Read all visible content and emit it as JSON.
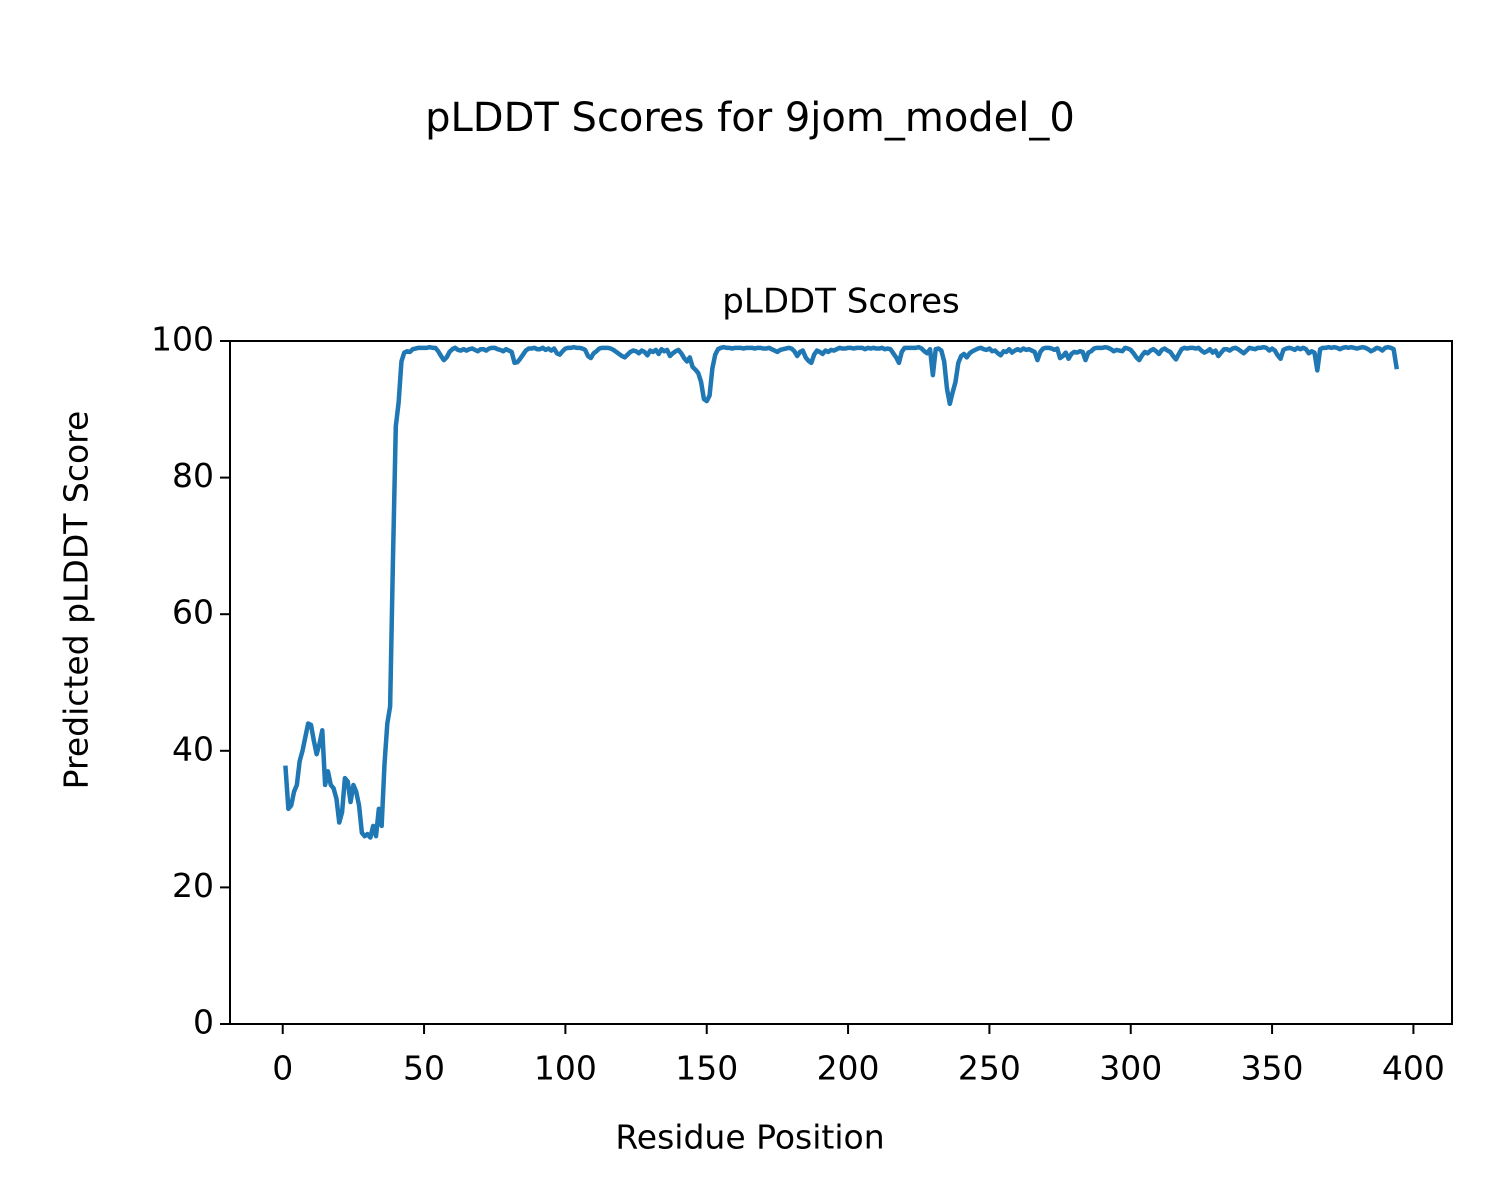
{
  "chart_data": {
    "type": "line",
    "title": "pLDDT Scores for 9jom_model_0",
    "subtitle": "pLDDT Scores",
    "xlabel": "Residue Position",
    "ylabel": "Predicted pLDDT Score",
    "xlim": [
      -18.65,
      413.65
    ],
    "ylim": [
      0,
      100
    ],
    "xticks": [
      0,
      50,
      100,
      150,
      200,
      250,
      300,
      350,
      400
    ],
    "yticks": [
      0,
      20,
      40,
      60,
      80,
      100
    ],
    "x": [
      1,
      2,
      3,
      4,
      5,
      6,
      7,
      8,
      9,
      10,
      11,
      12,
      13,
      14,
      15,
      16,
      17,
      18,
      19,
      20,
      21,
      22,
      23,
      24,
      25,
      26,
      27,
      28,
      29,
      30,
      31,
      32,
      33,
      34,
      35,
      36,
      37,
      38,
      39,
      40,
      41,
      42,
      43,
      44,
      45,
      46,
      47,
      48,
      49,
      50,
      51,
      52,
      53,
      54,
      55,
      56,
      57,
      58,
      59,
      60,
      61,
      62,
      63,
      64,
      65,
      66,
      67,
      68,
      69,
      70,
      71,
      72,
      73,
      74,
      75,
      76,
      77,
      78,
      79,
      80,
      81,
      82,
      83,
      84,
      85,
      86,
      87,
      88,
      89,
      90,
      91,
      92,
      93,
      94,
      95,
      96,
      97,
      98,
      99,
      100,
      101,
      102,
      103,
      104,
      105,
      106,
      107,
      108,
      109,
      110,
      111,
      112,
      113,
      114,
      115,
      116,
      117,
      118,
      119,
      120,
      121,
      122,
      123,
      124,
      125,
      126,
      127,
      128,
      129,
      130,
      131,
      132,
      133,
      134,
      135,
      136,
      137,
      138,
      139,
      140,
      141,
      142,
      143,
      144,
      145,
      146,
      147,
      148,
      149,
      150,
      151,
      152,
      153,
      154,
      155,
      156,
      157,
      158,
      159,
      160,
      161,
      162,
      163,
      164,
      165,
      166,
      167,
      168,
      169,
      170,
      171,
      172,
      173,
      174,
      175,
      176,
      177,
      178,
      179,
      180,
      181,
      182,
      183,
      184,
      185,
      186,
      187,
      188,
      189,
      190,
      191,
      192,
      193,
      194,
      195,
      196,
      197,
      198,
      199,
      200,
      201,
      202,
      203,
      204,
      205,
      206,
      207,
      208,
      209,
      210,
      211,
      212,
      213,
      214,
      215,
      216,
      217,
      218,
      219,
      220,
      221,
      222,
      223,
      224,
      225,
      226,
      227,
      228,
      229,
      230,
      231,
      232,
      233,
      234,
      235,
      236,
      237,
      238,
      239,
      240,
      241,
      242,
      243,
      244,
      245,
      246,
      247,
      248,
      249,
      250,
      251,
      252,
      253,
      254,
      255,
      256,
      257,
      258,
      259,
      260,
      261,
      262,
      263,
      264,
      265,
      266,
      267,
      268,
      269,
      270,
      271,
      272,
      273,
      274,
      275,
      276,
      277,
      278,
      279,
      280,
      281,
      282,
      283,
      284,
      285,
      286,
      287,
      288,
      289,
      290,
      291,
      292,
      293,
      294,
      295,
      296,
      297,
      298,
      299,
      300,
      301,
      302,
      303,
      304,
      305,
      306,
      307,
      308,
      309,
      310,
      311,
      312,
      313,
      314,
      315,
      316,
      317,
      318,
      319,
      320,
      321,
      322,
      323,
      324,
      325,
      326,
      327,
      328,
      329,
      330,
      331,
      332,
      333,
      334,
      335,
      336,
      337,
      338,
      339,
      340,
      341,
      342,
      343,
      344,
      345,
      346,
      347,
      348,
      349,
      350,
      351,
      352,
      353,
      354,
      355,
      356,
      357,
      358,
      359,
      360,
      361,
      362,
      363,
      364,
      365,
      366,
      367,
      368,
      369,
      370,
      371,
      372,
      373,
      374,
      375,
      376,
      377,
      378,
      379,
      380,
      381,
      382,
      383,
      384,
      385,
      386,
      387,
      388,
      389,
      390,
      391,
      392,
      393,
      394
    ],
    "series": [
      {
        "color": "#1f77b4",
        "values": [
          37.5,
          31.5,
          32,
          34,
          35,
          38.5,
          40,
          42,
          44,
          43.8,
          41.5,
          39.5,
          41,
          43,
          35,
          37,
          35,
          34.5,
          33,
          29.5,
          31,
          36,
          35.5,
          32.5,
          35,
          34,
          32,
          28,
          27.5,
          27.8,
          27.3,
          29,
          27.5,
          31.5,
          29,
          38,
          44,
          46.5,
          68,
          87.5,
          91,
          97,
          98.3,
          98.5,
          98.4,
          98.8,
          98.9,
          99,
          99,
          99,
          99,
          99.1,
          99,
          99,
          98.5,
          97.8,
          97.2,
          97.6,
          98.4,
          98.8,
          99,
          98.7,
          98.6,
          98.8,
          98.6,
          98.8,
          98.9,
          98.7,
          98.5,
          98.8,
          98.8,
          98.6,
          98.9,
          99,
          99,
          98.8,
          98.7,
          98.5,
          98.8,
          98.6,
          98.4,
          96.8,
          96.9,
          97.4,
          98,
          98.6,
          98.9,
          98.9,
          99,
          98.8,
          98.8,
          99,
          98.7,
          98.9,
          98.6,
          98.9,
          98.2,
          98,
          98.5,
          98.9,
          99,
          99,
          99.1,
          99,
          99,
          98.9,
          98.7,
          97.8,
          97.5,
          98.2,
          98.5,
          98.9,
          99,
          99,
          99,
          98.9,
          98.7,
          98.4,
          98.1,
          97.8,
          97.6,
          98,
          98.4,
          98.6,
          98.5,
          98.2,
          98.6,
          98.4,
          97.9,
          98.6,
          98.4,
          98.7,
          98.1,
          98.8,
          98.5,
          98.7,
          97.8,
          98.2,
          98.5,
          98.7,
          98.2,
          97.5,
          97,
          97.6,
          96.2,
          95.8,
          95.3,
          94,
          91.5,
          91.2,
          92,
          96,
          98,
          98.8,
          99,
          99.1,
          99,
          99,
          98.9,
          99,
          99,
          99,
          98.9,
          99,
          99,
          99,
          98.9,
          99,
          99,
          98.9,
          98.9,
          99,
          98.8,
          98.6,
          98.4,
          98.7,
          98.8,
          98.9,
          99,
          98.9,
          98.5,
          97.8,
          98.4,
          98.6,
          97.6,
          97.1,
          96.8,
          98,
          98.6,
          98.4,
          98.1,
          98.6,
          98.4,
          98.7,
          98.6,
          98.8,
          99,
          98.9,
          98.9,
          99,
          99,
          98.9,
          99,
          99,
          99,
          98.8,
          99,
          98.9,
          99,
          98.9,
          98.9,
          99,
          98.8,
          98.9,
          98.8,
          98.2,
          97.6,
          96.8,
          98.4,
          99,
          99,
          99,
          99,
          99,
          99.1,
          98.9,
          98.5,
          98.2,
          98.8,
          95,
          98.8,
          98.9,
          98.6,
          97,
          93,
          90.8,
          92.5,
          94,
          96.8,
          97.8,
          98.1,
          97.6,
          98.2,
          98.5,
          98.7,
          98.9,
          99,
          98.8,
          98.7,
          98.9,
          98.5,
          98.6,
          98.2,
          97.9,
          98.5,
          98.4,
          98.8,
          98.3,
          98.6,
          98.8,
          98.6,
          98.9,
          98.7,
          98.8,
          98.6,
          98.4,
          97.2,
          98.4,
          98.9,
          99,
          99,
          98.9,
          98.7,
          98.9,
          97.5,
          97.8,
          98.3,
          97.4,
          98.1,
          98.4,
          98.3,
          98.5,
          98.4,
          97.2,
          98.3,
          98.5,
          98.9,
          99,
          99,
          99,
          99.1,
          99,
          98.8,
          98.5,
          98.7,
          98.6,
          98.5,
          99,
          98.9,
          98.7,
          98.2,
          97.6,
          97.2,
          97.9,
          98.4,
          98.2,
          98.6,
          98.8,
          98.5,
          98.1,
          98.7,
          98.9,
          98.6,
          98.4,
          97.8,
          97.3,
          98.1,
          98.8,
          99,
          98.9,
          99,
          99,
          98.9,
          99,
          98.6,
          98.3,
          98.5,
          98.8,
          98.3,
          98.6,
          97.8,
          98.3,
          98.8,
          98.8,
          98.6,
          98.9,
          99,
          98.8,
          98.5,
          98.2,
          98.6,
          99,
          98.9,
          98.8,
          99,
          99,
          99.1,
          99,
          98.6,
          98.9,
          98.6,
          97.9,
          97.4,
          98.7,
          98.9,
          99,
          98.9,
          98.7,
          99,
          98.8,
          99,
          98.8,
          98.2,
          98.5,
          98.3,
          95.7,
          98.8,
          99,
          99,
          99.1,
          99,
          99.1,
          99,
          98.8,
          99,
          99.1,
          99,
          99.1,
          99,
          98.9,
          99,
          99.1,
          99,
          98.8,
          98.5,
          98.7,
          99,
          98.9,
          98.6,
          99,
          99.1,
          99,
          98.8,
          96.2
        ]
      }
    ]
  }
}
